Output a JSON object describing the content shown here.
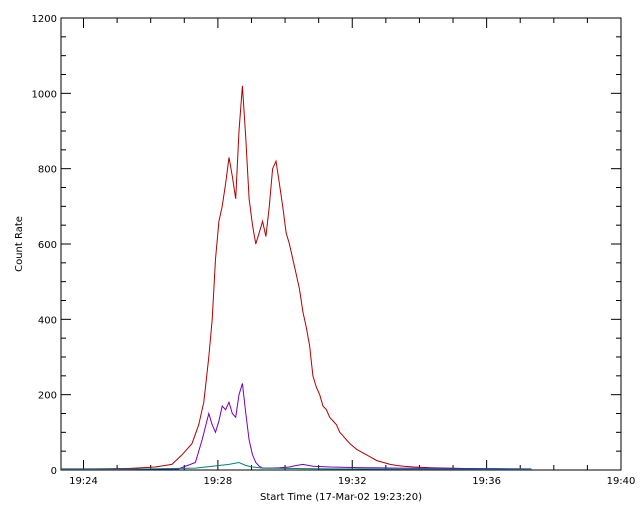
{
  "chart_data": {
    "type": "line",
    "title": "",
    "xlabel": "Start Time (17-Mar-02 19:23:20)",
    "ylabel": "Count Rate",
    "x_unit": "minutes after 19:23:20",
    "xlim": [
      0,
      16.67
    ],
    "ylim": [
      0,
      1200
    ],
    "x_ticks": [
      {
        "value": 0.67,
        "label": "19:24"
      },
      {
        "value": 4.67,
        "label": "19:28"
      },
      {
        "value": 8.67,
        "label": "19:32"
      },
      {
        "value": 12.67,
        "label": "19:36"
      },
      {
        "value": 16.67,
        "label": "19:40"
      }
    ],
    "y_ticks": [
      {
        "value": 0,
        "label": "0"
      },
      {
        "value": 200,
        "label": "200"
      },
      {
        "value": 400,
        "label": "400"
      },
      {
        "value": 600,
        "label": "600"
      },
      {
        "value": 800,
        "label": "800"
      },
      {
        "value": 1000,
        "label": "1000"
      },
      {
        "value": 1200,
        "label": "1200"
      }
    ],
    "grid": false,
    "series": [
      {
        "color": "#b00000",
        "x": [
          0,
          1.0,
          2.0,
          2.8,
          3.3,
          3.6,
          3.9,
          4.1,
          4.25,
          4.4,
          4.5,
          4.6,
          4.7,
          4.8,
          4.9,
          5.0,
          5.1,
          5.2,
          5.3,
          5.4,
          5.5,
          5.6,
          5.7,
          5.8,
          5.9,
          6.0,
          6.1,
          6.2,
          6.3,
          6.4,
          6.5,
          6.6,
          6.7,
          6.8,
          6.9,
          7.0,
          7.1,
          7.2,
          7.3,
          7.4,
          7.5,
          7.6,
          7.7,
          7.8,
          7.9,
          8.0,
          8.1,
          8.2,
          8.3,
          8.4,
          8.5,
          8.6,
          8.8,
          9.0,
          9.2,
          9.4,
          9.6,
          9.8,
          10.0,
          10.2,
          10.5,
          11.0,
          11.5,
          12.0,
          12.5,
          13.0,
          13.5,
          14.0
        ],
        "y": [
          3,
          3,
          4,
          8,
          15,
          40,
          70,
          120,
          180,
          300,
          400,
          560,
          660,
          700,
          760,
          830,
          780,
          720,
          900,
          1020,
          880,
          720,
          650,
          600,
          630,
          660,
          620,
          700,
          800,
          820,
          760,
          700,
          630,
          600,
          560,
          520,
          480,
          420,
          380,
          330,
          250,
          220,
          200,
          170,
          160,
          140,
          130,
          120,
          100,
          90,
          80,
          70,
          55,
          45,
          35,
          25,
          20,
          15,
          12,
          10,
          8,
          6,
          5,
          4,
          3,
          3,
          2,
          2
        ]
      },
      {
        "color": "#7000c0",
        "x": [
          0,
          2.0,
          3.5,
          4.0,
          4.2,
          4.4,
          4.5,
          4.6,
          4.7,
          4.8,
          4.9,
          5.0,
          5.1,
          5.2,
          5.3,
          5.4,
          5.5,
          5.6,
          5.7,
          5.8,
          5.9,
          6.0,
          6.2,
          6.5,
          6.8,
          7.0,
          7.2,
          7.5,
          8.0,
          9.0,
          10.0,
          12.0,
          14.0
        ],
        "y": [
          2,
          2,
          3,
          20,
          80,
          150,
          120,
          100,
          130,
          170,
          160,
          180,
          150,
          140,
          200,
          230,
          150,
          80,
          40,
          20,
          10,
          5,
          5,
          6,
          8,
          12,
          15,
          10,
          8,
          6,
          5,
          4,
          3
        ]
      },
      {
        "color": "#008080",
        "x": [
          0,
          2.0,
          4.0,
          4.5,
          5.0,
          5.3,
          5.5,
          5.7,
          6.0,
          7.0,
          8.0,
          10.0,
          14.0
        ],
        "y": [
          2,
          2,
          5,
          10,
          15,
          20,
          12,
          8,
          5,
          4,
          3,
          2,
          2
        ]
      }
    ]
  }
}
